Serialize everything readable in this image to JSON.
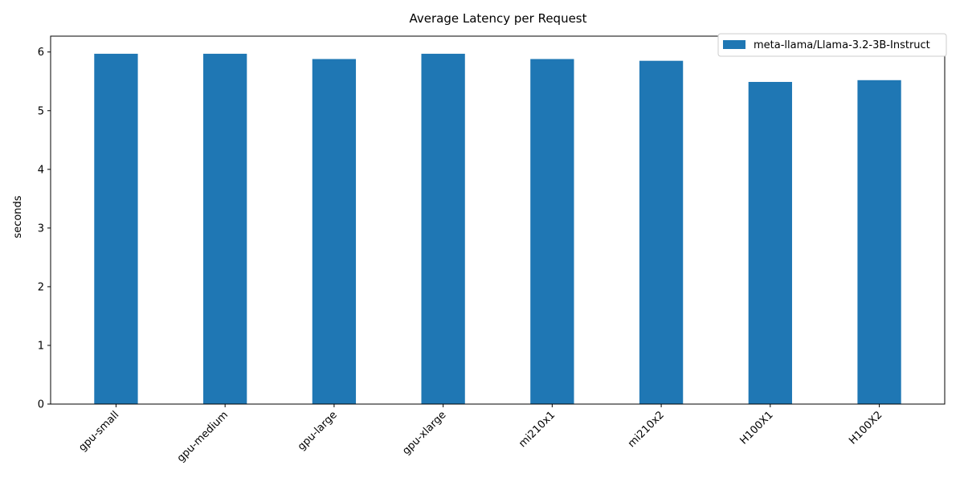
{
  "chart_data": {
    "type": "bar",
    "title": "Average Latency per Request",
    "xlabel": "",
    "ylabel": "seconds",
    "categories": [
      "gpu-small",
      "gpu-medium",
      "gpu-large",
      "gpu-xlarge",
      "mi210x1",
      "mi210x2",
      "H100X1",
      "H100X2"
    ],
    "series": [
      {
        "name": "meta-llama/Llama-3.2-3B-Instruct",
        "color": "#1f77b4",
        "values": [
          5.97,
          5.97,
          5.88,
          5.97,
          5.88,
          5.85,
          5.49,
          5.52
        ]
      }
    ],
    "ylim": [
      0,
      6.27
    ],
    "yticks": [
      0,
      1,
      2,
      3,
      4,
      5,
      6
    ],
    "grid": false,
    "legend_position": "top-right"
  }
}
